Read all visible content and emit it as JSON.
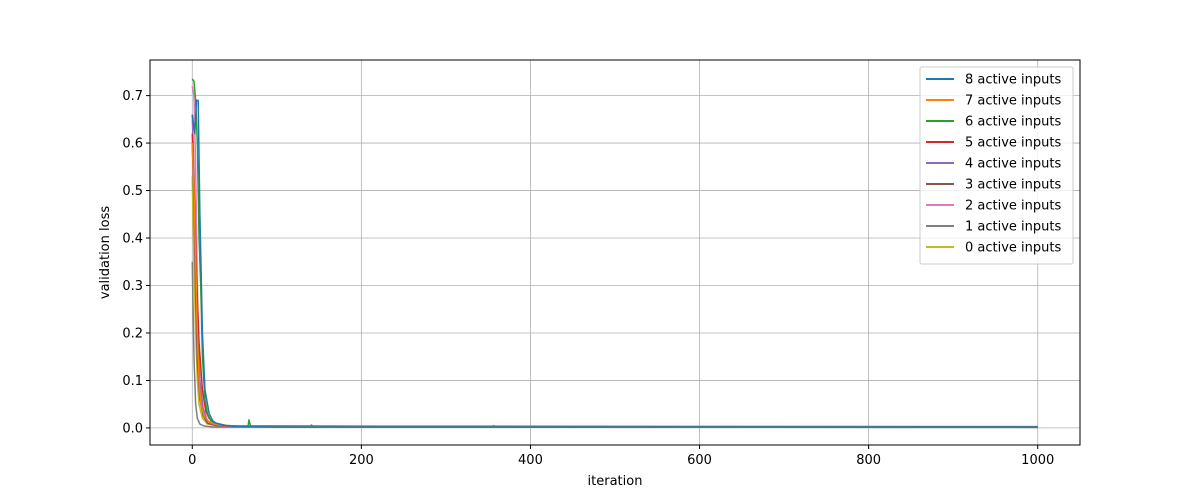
{
  "chart_data": {
    "type": "line",
    "title": "",
    "xlabel": "iteration",
    "ylabel": "validation loss",
    "xlim": [
      -50,
      1050
    ],
    "ylim": [
      -0.036,
      0.775
    ],
    "xticks": [
      0,
      200,
      400,
      600,
      800,
      1000
    ],
    "yticks": [
      0.0,
      0.1,
      0.2,
      0.3,
      0.4,
      0.5,
      0.6,
      0.7
    ],
    "grid": true,
    "legend_position": "top-right",
    "series": [
      {
        "name": "8 active inputs",
        "color": "#1f77b4",
        "points": [
          [
            0,
            0.66
          ],
          [
            3,
            0.62
          ],
          [
            5,
            0.69
          ],
          [
            7,
            0.69
          ],
          [
            9,
            0.45
          ],
          [
            12,
            0.2
          ],
          [
            15,
            0.08
          ],
          [
            20,
            0.03
          ],
          [
            25,
            0.012
          ],
          [
            35,
            0.006
          ],
          [
            50,
            0.003
          ],
          [
            100,
            0.002
          ],
          [
            300,
            0.002
          ],
          [
            600,
            0.002
          ],
          [
            1000,
            0.002
          ]
        ]
      },
      {
        "name": "7 active inputs",
        "color": "#ff7f0e",
        "points": [
          [
            0,
            0.6
          ],
          [
            2,
            0.5
          ],
          [
            4,
            0.35
          ],
          [
            6,
            0.2
          ],
          [
            8,
            0.1
          ],
          [
            10,
            0.05
          ],
          [
            14,
            0.025
          ],
          [
            20,
            0.012
          ],
          [
            30,
            0.006
          ],
          [
            50,
            0.003
          ],
          [
            100,
            0.002
          ],
          [
            1000,
            0.002
          ]
        ]
      },
      {
        "name": "6 active inputs",
        "color": "#2ca02c",
        "points": [
          [
            0,
            0.735
          ],
          [
            2,
            0.73
          ],
          [
            4,
            0.69
          ],
          [
            6,
            0.6
          ],
          [
            8,
            0.4
          ],
          [
            10,
            0.3
          ],
          [
            12,
            0.15
          ],
          [
            15,
            0.06
          ],
          [
            18,
            0.03
          ],
          [
            22,
            0.015
          ],
          [
            30,
            0.008
          ],
          [
            40,
            0.005
          ],
          [
            60,
            0.003
          ],
          [
            66,
            0.003
          ],
          [
            67,
            0.017
          ],
          [
            69,
            0.003
          ],
          [
            100,
            0.002
          ],
          [
            140,
            0.002
          ],
          [
            141,
            0.006
          ],
          [
            143,
            0.002
          ],
          [
            355,
            0.002
          ],
          [
            356,
            0.005
          ],
          [
            358,
            0.002
          ],
          [
            1000,
            0.002
          ]
        ]
      },
      {
        "name": "5 active inputs",
        "color": "#d62728",
        "points": [
          [
            0,
            0.62
          ],
          [
            3,
            0.45
          ],
          [
            5,
            0.32
          ],
          [
            8,
            0.18
          ],
          [
            12,
            0.08
          ],
          [
            16,
            0.035
          ],
          [
            20,
            0.02
          ],
          [
            28,
            0.01
          ],
          [
            40,
            0.005
          ],
          [
            60,
            0.003
          ],
          [
            1000,
            0.002
          ]
        ]
      },
      {
        "name": "4 active inputs",
        "color": "#9467bd",
        "points": [
          [
            0,
            0.66
          ],
          [
            2,
            0.54
          ],
          [
            4,
            0.38
          ],
          [
            6,
            0.22
          ],
          [
            9,
            0.1
          ],
          [
            13,
            0.04
          ],
          [
            18,
            0.015
          ],
          [
            25,
            0.008
          ],
          [
            40,
            0.004
          ],
          [
            1000,
            0.002
          ]
        ]
      },
      {
        "name": "3 active inputs",
        "color": "#8c564b",
        "points": [
          [
            0,
            0.6
          ],
          [
            2,
            0.47
          ],
          [
            4,
            0.28
          ],
          [
            6,
            0.14
          ],
          [
            9,
            0.06
          ],
          [
            13,
            0.025
          ],
          [
            18,
            0.01
          ],
          [
            28,
            0.005
          ],
          [
            50,
            0.003
          ],
          [
            1000,
            0.002
          ]
        ]
      },
      {
        "name": "2 active inputs",
        "color": "#e377c2",
        "points": [
          [
            0,
            0.72
          ],
          [
            2,
            0.7
          ],
          [
            4,
            0.55
          ],
          [
            6,
            0.3
          ],
          [
            8,
            0.12
          ],
          [
            11,
            0.05
          ],
          [
            15,
            0.02
          ],
          [
            22,
            0.008
          ],
          [
            35,
            0.004
          ],
          [
            1000,
            0.002
          ]
        ]
      },
      {
        "name": "1 active inputs",
        "color": "#7f7f7f",
        "points": [
          [
            0,
            0.35
          ],
          [
            2,
            0.15
          ],
          [
            4,
            0.05
          ],
          [
            6,
            0.02
          ],
          [
            9,
            0.008
          ],
          [
            14,
            0.004
          ],
          [
            25,
            0.002
          ],
          [
            1000,
            0.001
          ]
        ]
      },
      {
        "name": "0 active inputs",
        "color": "#bcbd22",
        "points": [
          [
            0,
            0.53
          ],
          [
            2,
            0.35
          ],
          [
            4,
            0.2
          ],
          [
            6,
            0.1
          ],
          [
            8,
            0.05
          ],
          [
            12,
            0.02
          ],
          [
            18,
            0.008
          ],
          [
            30,
            0.004
          ],
          [
            1000,
            0.003
          ]
        ]
      }
    ]
  }
}
